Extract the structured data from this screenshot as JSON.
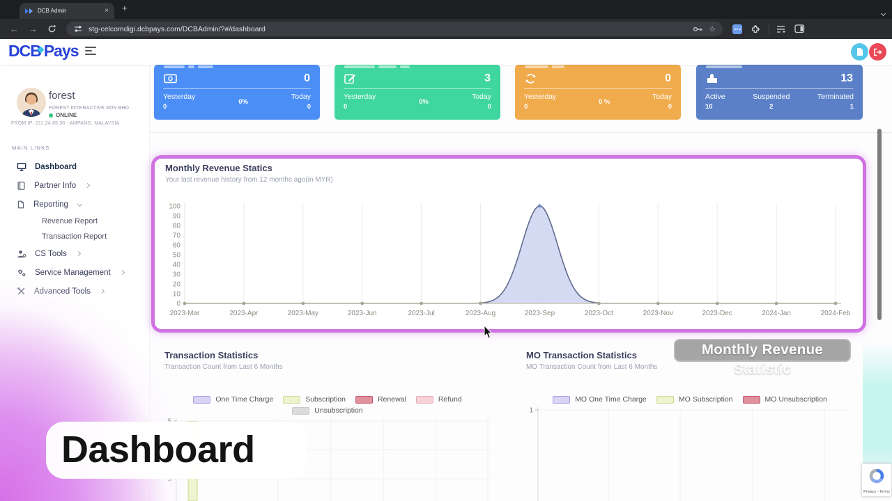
{
  "browser": {
    "tab_title": "DCB Admin",
    "close_glyph": "×",
    "new_tab_glyph": "+",
    "back_glyph": "←",
    "forward_glyph": "→",
    "url": "stg-celcomdigi.dcbpays.com/DCBAdmin/?#/dashboard"
  },
  "header": {
    "logo_dcb": "DCB",
    "logo_pays": "Pays"
  },
  "sidebar": {
    "user": {
      "name": "forest",
      "company": "FOREST INTERACTIVE SDN BHD",
      "status": "ONLINE",
      "ip": "FROM IP: 211.24.85.36 - AMPANG, MALAYSIA"
    },
    "section": "MAIN LINKS",
    "items": {
      "dashboard": "Dashboard",
      "partner_info": "Partner Info",
      "reporting": "Reporting",
      "revenue_report": "Revenue Report",
      "transaction_report": "Transaction Report",
      "cs_tools": "CS Tools",
      "service_management": "Service Management",
      "advanced_tools": "Advanced Tools"
    }
  },
  "stat_cards": [
    {
      "icon": "banknote-icon",
      "color": "#4b8ef5",
      "value": "0",
      "left_label": "Yesterday",
      "left_value": "0",
      "center_value": "0%",
      "right_label": "Today",
      "right_value": "0"
    },
    {
      "icon": "edit-icon",
      "color": "#3fd6a0",
      "value": "3",
      "left_label": "Yesterday",
      "left_value": "0",
      "center_value": "0%",
      "right_label": "Today",
      "right_value": "0"
    },
    {
      "icon": "sync-icon",
      "color": "#f0ab4c",
      "value": "0",
      "left_label": "Yesterday",
      "left_value": "0",
      "center_value": "0 %",
      "right_label": "Today",
      "right_value": "0"
    },
    {
      "icon": "puzzle-icon",
      "color": "#5b80c8",
      "value": "13",
      "left_label": "Active",
      "left_value": "10",
      "center_label": "Suspended",
      "center_value": "2",
      "right_label": "Terminated",
      "right_value": "1"
    }
  ],
  "chart_data": [
    {
      "id": "revenue",
      "type": "area",
      "title": "Monthly Revenue Statics",
      "subtitle": "Your last revenue history from 12 months ago(in MYR)",
      "x": [
        "2023-Mar",
        "2023-Apr",
        "2023-May",
        "2023-Jun",
        "2023-Jul",
        "2023-Aug",
        "2023-Sep",
        "2023-Oct",
        "2023-Nov",
        "2023-Dec",
        "2024-Jan",
        "2024-Feb"
      ],
      "values": [
        0,
        0,
        0,
        0,
        0,
        0,
        100,
        0,
        0,
        0,
        0,
        0
      ],
      "ylim": [
        0,
        100
      ],
      "yticks": [
        0,
        10,
        20,
        30,
        40,
        50,
        60,
        70,
        80,
        90,
        100
      ],
      "fill": "#ccd3f0",
      "line": "#5f6b8f",
      "grid": true,
      "legend_position": "none"
    },
    {
      "id": "transaction",
      "type": "bar",
      "title": "Transaction Statistics",
      "subtitle": "Transaction Count from Last 6 Months",
      "legend": [
        {
          "label": "One Time Charge",
          "fill": "#d9d4f6",
          "border": "#a89fe0"
        },
        {
          "label": "Subscription",
          "fill": "#eff3cf",
          "border": "#cfd98f"
        },
        {
          "label": "Renewal",
          "fill": "#e0909f",
          "border": "#c25b72"
        },
        {
          "label": "Refund",
          "fill": "#f7d2da",
          "border": "#e8a9b8"
        },
        {
          "label": "Unsubscription",
          "fill": "#dcdcdc",
          "border": "#c9c9c9"
        }
      ],
      "visible_yticks": [
        5,
        3
      ],
      "visible_bars": [
        {
          "series": "Subscription",
          "x_index": 0,
          "value": 5
        }
      ]
    },
    {
      "id": "mo-transaction",
      "type": "bar",
      "title": "MO Transaction Statistics",
      "subtitle": "MO Transaction Count from Last 6 Months",
      "legend": [
        {
          "label": "MO One Time Charge",
          "fill": "#d9d4f6",
          "border": "#a89fe0"
        },
        {
          "label": "MO Subscription",
          "fill": "#eff3cf",
          "border": "#cfd98f"
        },
        {
          "label": "MO Unsubscription",
          "fill": "#e0909f",
          "border": "#c25b72"
        }
      ],
      "visible_yticks": [
        1
      ],
      "visible_bars": []
    }
  ],
  "overlays": {
    "caption": "Dashboard",
    "chart_label": "Monthly Revenue Statistic",
    "recaptcha_terms": "Privacy - Terms"
  }
}
